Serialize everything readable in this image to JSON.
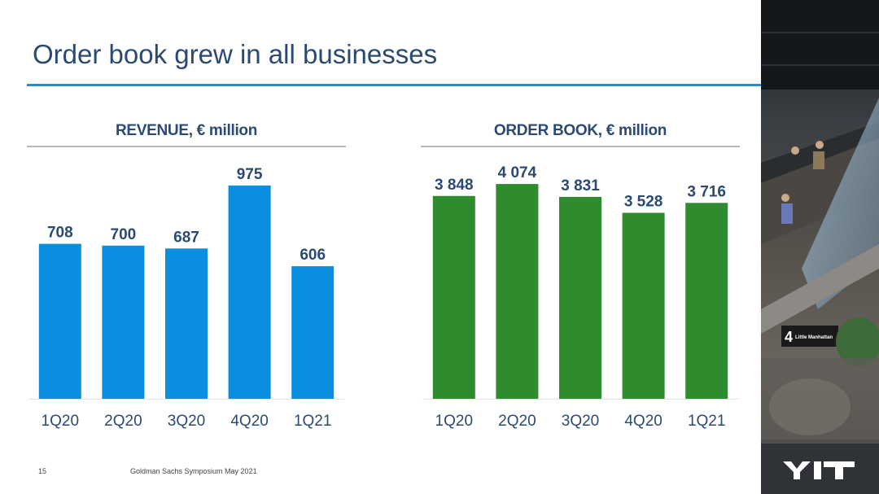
{
  "page": {
    "title": "Order book grew in all businesses",
    "footer_page_number": "15",
    "footer_text": "Goldman Sachs Symposium May 2021",
    "logo_text": "YIT",
    "photo_sign_number": "4",
    "photo_sign_text": "Little Manhattan"
  },
  "colors": {
    "title": "#2b4a73",
    "accent_rule": "#1f8fd6",
    "revenue_bar": "#0a8fe0",
    "orderbook_bar": "#2e8b2e",
    "label_text": "#2b4a73"
  },
  "chart_data": [
    {
      "type": "bar",
      "title": "REVENUE, € million",
      "categories": [
        "1Q20",
        "2Q20",
        "3Q20",
        "4Q20",
        "1Q21"
      ],
      "values": [
        708,
        700,
        687,
        975,
        606
      ],
      "value_labels": [
        "708",
        "700",
        "687",
        "975",
        "606"
      ],
      "ylim": [
        0,
        1060
      ],
      "grid": false,
      "legend": "none",
      "color": "#0a8fe0"
    },
    {
      "type": "bar",
      "title": "ORDER BOOK, € million",
      "categories": [
        "1Q20",
        "2Q20",
        "3Q20",
        "4Q20",
        "1Q21"
      ],
      "values": [
        3848,
        4074,
        3831,
        3528,
        3716
      ],
      "value_labels": [
        "3 848",
        "4 074",
        "3 831",
        "3 528",
        "3 716"
      ],
      "ylim": [
        0,
        4400
      ],
      "grid": false,
      "legend": "none",
      "color": "#2e8b2e"
    }
  ]
}
